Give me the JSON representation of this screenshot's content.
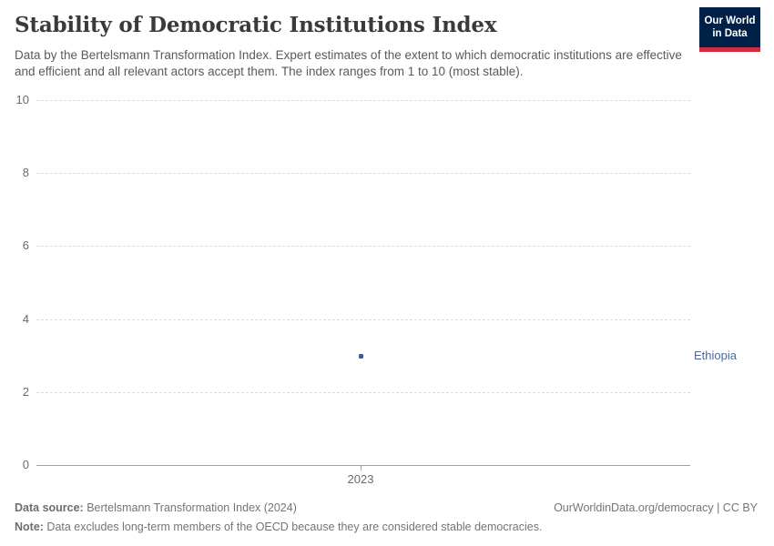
{
  "header": {
    "title": "Stability of Democratic Institutions Index",
    "subtitle": "Data by the Bertelsmann Transformation Index. Expert estimates of the extent to which democratic institutions are effective and efficient and all relevant actors accept them. The index ranges from 1 to 10 (most stable).",
    "logo": {
      "line1": "Our World",
      "line2": "in Data",
      "bg_color": "#002147",
      "accent_color": "#d12d3f"
    }
  },
  "chart_data": {
    "type": "scatter",
    "title": "Stability of Democratic Institutions Index",
    "xlabel": "",
    "ylabel": "",
    "ylim": [
      0,
      10
    ],
    "yticks": [
      0,
      2,
      4,
      6,
      8,
      10
    ],
    "xticks": [
      2023
    ],
    "grid": "horizontal-dashed",
    "legend_position": "right-entity-label",
    "series": [
      {
        "name": "Ethiopia",
        "color": "#4c6a9c",
        "point_color": "#3d5a94",
        "points": [
          {
            "x": 2023,
            "y": 3
          }
        ]
      }
    ]
  },
  "footer": {
    "source_label": "Data source:",
    "source_text": " Bertelsmann Transformation Index (2024)",
    "rights_text": "OurWorldinData.org/democracy | CC BY",
    "note_label": "Note:",
    "note_text": " Data excludes long-term members of the OECD because they are considered stable democracies."
  }
}
